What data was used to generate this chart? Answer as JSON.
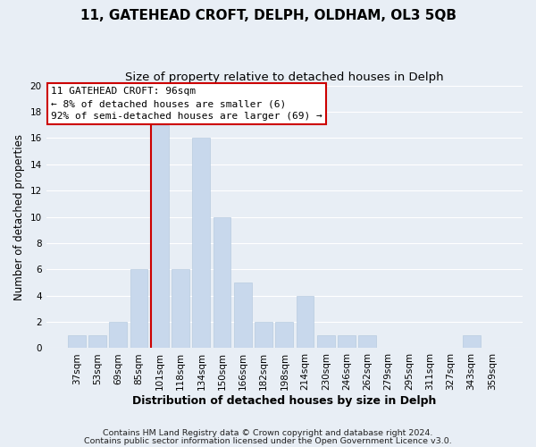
{
  "title": "11, GATEHEAD CROFT, DELPH, OLDHAM, OL3 5QB",
  "subtitle": "Size of property relative to detached houses in Delph",
  "xlabel": "Distribution of detached houses by size in Delph",
  "ylabel": "Number of detached properties",
  "bar_labels": [
    "37sqm",
    "53sqm",
    "69sqm",
    "85sqm",
    "101sqm",
    "118sqm",
    "134sqm",
    "150sqm",
    "166sqm",
    "182sqm",
    "198sqm",
    "214sqm",
    "230sqm",
    "246sqm",
    "262sqm",
    "279sqm",
    "295sqm",
    "311sqm",
    "327sqm",
    "343sqm",
    "359sqm"
  ],
  "bar_values": [
    1,
    1,
    2,
    6,
    17,
    6,
    16,
    10,
    5,
    2,
    2,
    4,
    1,
    1,
    1,
    0,
    0,
    0,
    0,
    1,
    0
  ],
  "bar_color": "#c8d8ec",
  "bar_edge_color": "#b8cce0",
  "highlight_index": 4,
  "highlight_line_color": "#cc0000",
  "ylim": [
    0,
    20
  ],
  "yticks": [
    0,
    2,
    4,
    6,
    8,
    10,
    12,
    14,
    16,
    18,
    20
  ],
  "annotation_title": "11 GATEHEAD CROFT: 96sqm",
  "annotation_line1": "← 8% of detached houses are smaller (6)",
  "annotation_line2": "92% of semi-detached houses are larger (69) →",
  "annotation_box_color": "#ffffff",
  "annotation_box_edge": "#cc0000",
  "footer1": "Contains HM Land Registry data © Crown copyright and database right 2024.",
  "footer2": "Contains public sector information licensed under the Open Government Licence v3.0.",
  "grid_color": "#ffffff",
  "background_color": "#e8eef5",
  "title_fontsize": 11,
  "subtitle_fontsize": 9.5,
  "ylabel_fontsize": 8.5,
  "xlabel_fontsize": 9,
  "tick_fontsize": 7.5,
  "footer_fontsize": 6.8
}
